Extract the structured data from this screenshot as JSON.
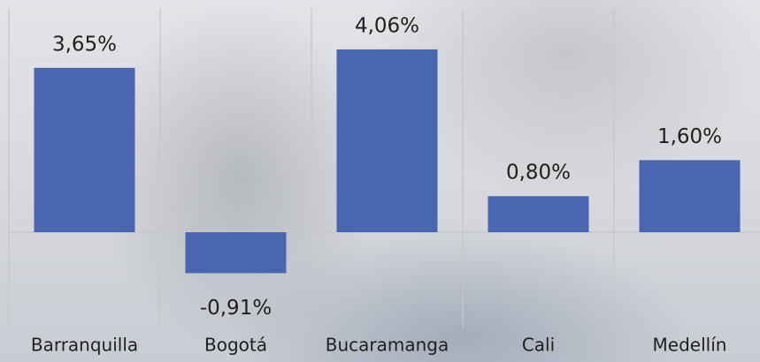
{
  "chart_data": {
    "type": "bar",
    "categories": [
      "Barranquilla",
      "Bogotá",
      "Bucaramanga",
      "Cali",
      "Medellín"
    ],
    "values": [
      3.65,
      -0.91,
      4.06,
      0.8,
      1.6
    ],
    "value_labels": [
      "3,65%",
      "-0,91%",
      "4,06%",
      "0,80%",
      "1,60%"
    ],
    "color": "#4a66b0"
  }
}
